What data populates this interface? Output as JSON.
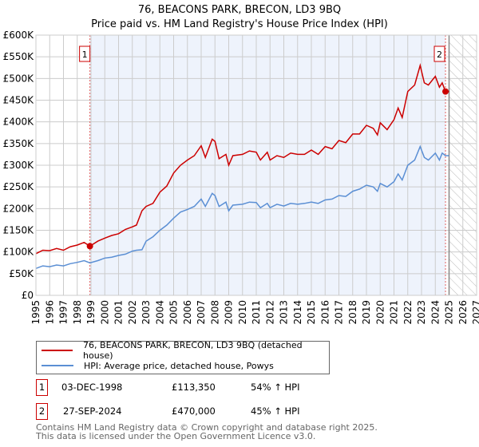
{
  "title_line1": "76, BEACONS PARK, BRECON, LD3 9BQ",
  "title_line2": "Price paid vs. HM Land Registry's House Price Index (HPI)",
  "chart_data": {
    "type": "line",
    "title": "76, BEACONS PARK, BRECON, LD3 9BQ — Price paid vs. HM Land Registry's House Price Index (HPI)",
    "xlim": [
      1995,
      2027
    ],
    "ylim": [
      0,
      600000
    ],
    "x_ticks": [
      "1995",
      "1996",
      "1997",
      "1998",
      "1999",
      "2000",
      "2001",
      "2002",
      "2003",
      "2004",
      "2005",
      "2006",
      "2007",
      "2008",
      "2009",
      "2010",
      "2011",
      "2012",
      "2013",
      "2014",
      "2015",
      "2016",
      "2017",
      "2018",
      "2019",
      "2020",
      "2021",
      "2022",
      "2023",
      "2024",
      "2025",
      "2026",
      "2027"
    ],
    "y_ticks": [
      {
        "v": 0,
        "l": "£0"
      },
      {
        "v": 50000,
        "l": "£50K"
      },
      {
        "v": 100000,
        "l": "£100K"
      },
      {
        "v": 150000,
        "l": "£150K"
      },
      {
        "v": 200000,
        "l": "£200K"
      },
      {
        "v": 250000,
        "l": "£250K"
      },
      {
        "v": 300000,
        "l": "£300K"
      },
      {
        "v": 350000,
        "l": "£350K"
      },
      {
        "v": 400000,
        "l": "£400K"
      },
      {
        "v": 450000,
        "l": "£450K"
      },
      {
        "v": 500000,
        "l": "£500K"
      },
      {
        "v": 550000,
        "l": "£550K"
      },
      {
        "v": 600000,
        "l": "£600K"
      }
    ],
    "grid": true,
    "shaded_range": [
      1998.92,
      2024.74
    ],
    "forecast_hatch_from": 2025.0,
    "series": [
      {
        "name": "76, BEACONS PARK, BRECON, LD3 9BQ (detached house)",
        "color": "#cc0000",
        "x": [
          1995,
          1995.5,
          1996,
          1996.5,
          1997,
          1997.5,
          1998,
          1998.5,
          1998.92,
          1999.5,
          2000,
          2000.5,
          2001,
          2001.5,
          2002,
          2002.3,
          2002.7,
          2003,
          2003.5,
          2004,
          2004.5,
          2005,
          2005.5,
          2006,
          2006.5,
          2007,
          2007.3,
          2007.8,
          2008,
          2008.3,
          2008.8,
          2009,
          2009.3,
          2010,
          2010.5,
          2011,
          2011.3,
          2011.8,
          2012,
          2012.5,
          2013,
          2013.5,
          2014,
          2014.5,
          2015,
          2015.5,
          2016,
          2016.5,
          2017,
          2017.5,
          2018,
          2018.5,
          2019,
          2019.5,
          2019.8,
          2020,
          2020.5,
          2021,
          2021.3,
          2021.6,
          2022,
          2022.5,
          2022.9,
          2023.2,
          2023.5,
          2024,
          2024.3,
          2024.5,
          2024.74,
          2025
        ],
        "y": [
          96000,
          104000,
          103000,
          108000,
          104000,
          112000,
          116000,
          122000,
          113350,
          125000,
          132000,
          138000,
          142000,
          152000,
          158000,
          162000,
          195000,
          205000,
          212000,
          238000,
          252000,
          282000,
          300000,
          312000,
          322000,
          345000,
          318000,
          360000,
          355000,
          315000,
          325000,
          300000,
          322000,
          325000,
          333000,
          330000,
          312000,
          330000,
          312000,
          322000,
          318000,
          328000,
          325000,
          325000,
          335000,
          325000,
          343000,
          338000,
          357000,
          352000,
          372000,
          372000,
          392000,
          385000,
          370000,
          398000,
          382000,
          405000,
          432000,
          410000,
          470000,
          485000,
          530000,
          490000,
          485000,
          505000,
          480000,
          490000,
          470000,
          470000
        ]
      },
      {
        "name": "HPI: Average price, detached house, Powys",
        "color": "#5b8fd4",
        "x": [
          1995,
          1995.5,
          1996,
          1996.5,
          1997,
          1997.5,
          1998,
          1998.5,
          1998.92,
          1999.5,
          2000,
          2000.5,
          2001,
          2001.5,
          2002,
          2002.3,
          2002.7,
          2003,
          2003.5,
          2004,
          2004.5,
          2005,
          2005.5,
          2006,
          2006.5,
          2007,
          2007.3,
          2007.8,
          2008,
          2008.3,
          2008.8,
          2009,
          2009.3,
          2010,
          2010.5,
          2011,
          2011.3,
          2011.8,
          2012,
          2012.5,
          2013,
          2013.5,
          2014,
          2014.5,
          2015,
          2015.5,
          2016,
          2016.5,
          2017,
          2017.5,
          2018,
          2018.5,
          2019,
          2019.5,
          2019.8,
          2020,
          2020.5,
          2021,
          2021.3,
          2021.6,
          2022,
          2022.5,
          2022.9,
          2023.2,
          2023.5,
          2024,
          2024.3,
          2024.5,
          2024.74,
          2025
        ],
        "y": [
          62000,
          68000,
          66000,
          70000,
          68000,
          73000,
          76000,
          80000,
          75000,
          80000,
          86000,
          88000,
          92000,
          95000,
          102000,
          104000,
          105000,
          125000,
          135000,
          150000,
          162000,
          178000,
          192000,
          198000,
          205000,
          222000,
          205000,
          235000,
          230000,
          205000,
          215000,
          195000,
          208000,
          210000,
          215000,
          214000,
          202000,
          212000,
          202000,
          210000,
          206000,
          212000,
          210000,
          212000,
          215000,
          212000,
          220000,
          222000,
          230000,
          228000,
          240000,
          245000,
          254000,
          250000,
          240000,
          258000,
          250000,
          262000,
          280000,
          266000,
          300000,
          312000,
          343000,
          318000,
          312000,
          328000,
          312000,
          328000,
          322000,
          322000
        ]
      }
    ],
    "annotations": [
      {
        "label": "1",
        "x": 1998.92,
        "y": 113350
      },
      {
        "label": "2",
        "x": 2024.74,
        "y": 470000
      }
    ]
  },
  "legend": {
    "items": [
      {
        "label": "76, BEACONS PARK, BRECON, LD3 9BQ (detached house)",
        "color": "#cc0000"
      },
      {
        "label": "HPI: Average price, detached house, Powys",
        "color": "#5b8fd4"
      }
    ]
  },
  "transactions": [
    {
      "num": "1",
      "date": "03-DEC-1998",
      "price": "£113,350",
      "hpi": "54% ↑ HPI"
    },
    {
      "num": "2",
      "date": "27-SEP-2024",
      "price": "£470,000",
      "hpi": "45% ↑ HPI"
    }
  ],
  "footer": {
    "line1": "Contains HM Land Registry data © Crown copyright and database right 2025.",
    "line2": "This data is licensed under the Open Government Licence v3.0."
  }
}
